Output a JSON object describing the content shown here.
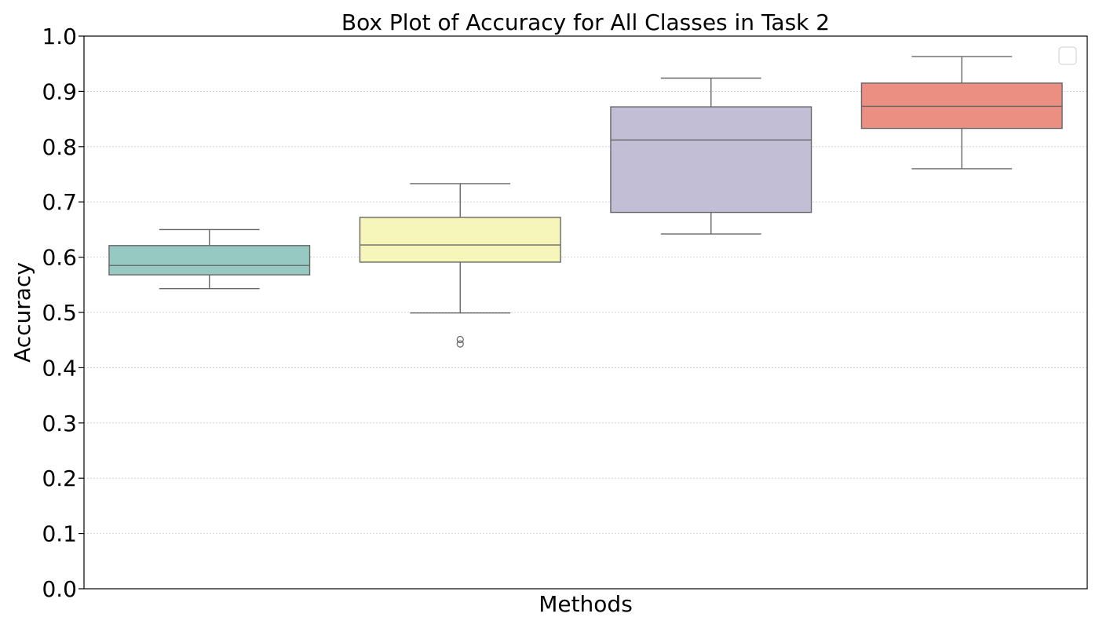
{
  "chart_data": {
    "type": "box",
    "title": "Box Plot of Accuracy for All Classes in Task 2",
    "xlabel": "Methods",
    "ylabel": "Accuracy",
    "ylim": [
      0.0,
      1.0
    ],
    "yticks": [
      "0.0",
      "0.1",
      "0.2",
      "0.3",
      "0.4",
      "0.5",
      "0.6",
      "0.7",
      "0.8",
      "0.9",
      "1.0"
    ],
    "grid": "y-dotted",
    "legend": {
      "placement": "top-right",
      "entries": []
    },
    "boxes": [
      {
        "color": "#96c9c1",
        "whisker_low": 0.543,
        "q1": 0.568,
        "median": 0.585,
        "q3": 0.621,
        "whisker_high": 0.65,
        "outliers": []
      },
      {
        "color": "#f6f6bb",
        "whisker_low": 0.499,
        "q1": 0.591,
        "median": 0.622,
        "q3": 0.672,
        "whisker_high": 0.733,
        "outliers": [
          0.451,
          0.443
        ]
      },
      {
        "color": "#c2bed6",
        "whisker_low": 0.642,
        "q1": 0.681,
        "median": 0.812,
        "q3": 0.872,
        "whisker_high": 0.924,
        "outliers": []
      },
      {
        "color": "#eb8f82",
        "whisker_low": 0.76,
        "q1": 0.833,
        "median": 0.873,
        "q3": 0.915,
        "whisker_high": 0.963,
        "outliers": []
      }
    ]
  }
}
